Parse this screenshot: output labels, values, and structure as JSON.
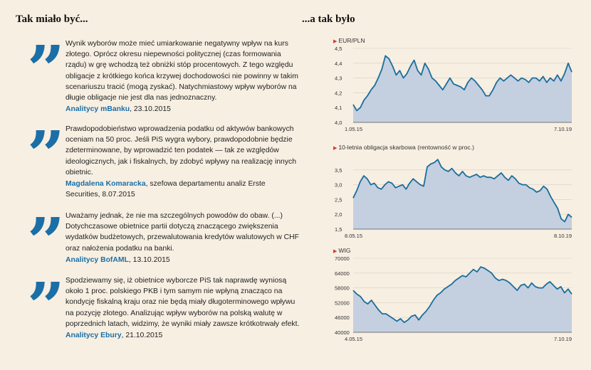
{
  "headings": {
    "left": "Tak miało być...",
    "right": "...a tak było"
  },
  "quotes": [
    {
      "mark": "”",
      "text": "Wynik wyborów może mieć umiarkowanie negatywny wpływ na kurs złotego. Oprócz okresu niepewności politycznej (czas formowania rządu) w grę wchodzą też obniżki stóp procentowych. Z tego względu obligacje z krótkiego końca krzywej dochodowości nie powinny w takim scenariuszu tracić (mogą zyskać). Natychmiastowy wpływ wyborów na długie obligacje nie jest dla nas jednoznaczny.",
      "author": "Analitycy mBanku",
      "author_suffix": ", 23.10.2015"
    },
    {
      "mark": "”",
      "text": "Prawdopodobieństwo wprowadzenia podatku od aktywów bankowych oceniam na 50 proc. Jeśli PiS wygra wybory, prawdopodobnie będzie zdeterminowane, by wprowadzić ten podatek — tak ze względów ideologicznych, jak i fiskalnych, by zdobyć wpływy na realizację innych obietnic.",
      "author": "Magdalena Komaracka",
      "author_suffix": ", szefowa departamentu analiz Erste Securities, 8.07.2015"
    },
    {
      "mark": "”",
      "text": "Uważamy jednak, że nie ma szczególnych powodów do obaw. (...) Dotychczasowe obietnice partii dotyczą znaczącego zwiększenia wydatków budżetowych, przewalutowania kredytów walutowych w CHF oraz nałożenia podatku na banki.",
      "author": "Analitycy BofAML",
      "author_suffix": ", 13.10.2015"
    },
    {
      "mark": "”",
      "text": "Spodziewamy się, iż obietnice wyborcze PiS tak naprawdę wyniosą około 1 proc. polskiego PKB i tym samym nie wpłyną znacząco na kondycję fiskalną kraju oraz nie będą miały długoterminowego wpływu na pozycję złotego. Analizując wpływ wyborów na polską walutę w poprzednich latach, widzimy, że wyniki miały zawsze krótkotrwały efekt.",
      "author": "Analitycy Ebury",
      "author_suffix": ", 21.10.2015"
    }
  ],
  "colors": {
    "accent": "#1b6fa6",
    "line": "#1a6e9c",
    "fill": "#c4cfe0",
    "marker": "#d63a2f",
    "background": "#f7efe2"
  },
  "chart_data": [
    {
      "type": "area",
      "title": "EUR/PLN",
      "x_start": "1.05.15",
      "x_end": "7.10.19",
      "yticks": [
        "4,5",
        "4,4",
        "4,3",
        "4,2",
        "4,1",
        "4,0"
      ],
      "ylim": [
        4.0,
        4.5
      ],
      "y": [
        4.12,
        4.08,
        4.1,
        4.15,
        4.18,
        4.22,
        4.25,
        4.3,
        4.36,
        4.45,
        4.43,
        4.38,
        4.32,
        4.35,
        4.3,
        4.33,
        4.38,
        4.42,
        4.35,
        4.32,
        4.4,
        4.36,
        4.3,
        4.28,
        4.25,
        4.22,
        4.26,
        4.3,
        4.26,
        4.25,
        4.24,
        4.22,
        4.27,
        4.3,
        4.28,
        4.25,
        4.22,
        4.18,
        4.18,
        4.22,
        4.27,
        4.3,
        4.28,
        4.3,
        4.32,
        4.3,
        4.28,
        4.3,
        4.29,
        4.27,
        4.3,
        4.3,
        4.28,
        4.31,
        4.27,
        4.3,
        4.28,
        4.32,
        4.28,
        4.33,
        4.4,
        4.34
      ]
    },
    {
      "type": "area",
      "title": "10-letnia obligacja skarbowa (rentowność w proc.)",
      "x_start": "8.05.15",
      "x_end": "8.10.19",
      "yticks": [
        "3,5",
        "3,0",
        "2,5",
        "2,0",
        "1,5"
      ],
      "ylim": [
        1.5,
        4.0
      ],
      "y": [
        2.55,
        2.8,
        3.1,
        3.3,
        3.2,
        3.0,
        3.05,
        2.9,
        2.85,
        3.0,
        3.1,
        3.05,
        2.9,
        2.95,
        3.0,
        2.85,
        3.05,
        3.2,
        3.1,
        3.0,
        2.95,
        3.6,
        3.7,
        3.75,
        3.85,
        3.6,
        3.5,
        3.45,
        3.55,
        3.4,
        3.3,
        3.45,
        3.3,
        3.25,
        3.3,
        3.35,
        3.25,
        3.3,
        3.25,
        3.25,
        3.2,
        3.3,
        3.4,
        3.25,
        3.15,
        3.3,
        3.2,
        3.05,
        3.0,
        3.0,
        2.9,
        2.85,
        2.75,
        2.8,
        2.95,
        2.85,
        2.6,
        2.4,
        2.2,
        1.85,
        1.75,
        2.0,
        1.9
      ]
    },
    {
      "type": "area",
      "title": "WIG",
      "x_start": "4.05.15",
      "x_end": "7.10.19",
      "yticks": [
        "70000",
        "64000",
        "58000",
        "52000",
        "46000",
        "40000"
      ],
      "ylim": [
        40000,
        70000
      ],
      "y": [
        57000,
        55500,
        54500,
        52500,
        51500,
        53000,
        51000,
        49000,
        47500,
        47500,
        46500,
        45500,
        44500,
        45500,
        44000,
        45000,
        46500,
        47000,
        45000,
        47000,
        48500,
        50500,
        53000,
        55000,
        56000,
        57500,
        58500,
        59500,
        61000,
        62000,
        63000,
        62500,
        64000,
        65500,
        64500,
        66500,
        66000,
        65000,
        64000,
        62000,
        61000,
        61500,
        61000,
        60000,
        58500,
        57000,
        59000,
        59500,
        58000,
        60000,
        58500,
        58000,
        58000,
        59500,
        60500,
        59000,
        57500,
        58500,
        56000,
        57500,
        55500
      ]
    }
  ]
}
